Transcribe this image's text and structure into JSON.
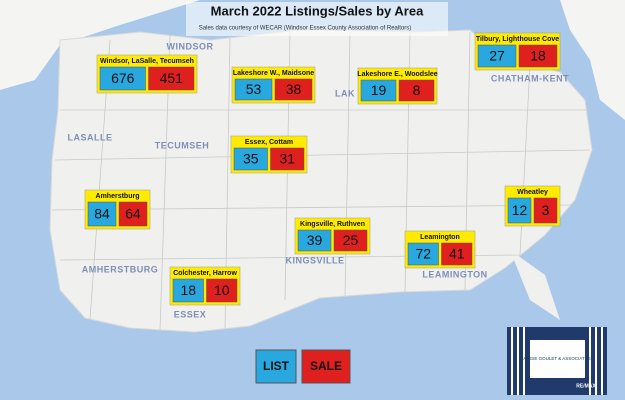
{
  "header": {
    "title": "March 2022 Listings/Sales by Area",
    "subtitle": "Sales data courtesy of WECAR (Windsor Essex County Association of Realtors)"
  },
  "areas": [
    {
      "name": "Windsor, LaSalle, Tecumseh",
      "list": 676,
      "sale": 451
    },
    {
      "name": "Lakeshore W., Maidsone",
      "list": 53,
      "sale": 38
    },
    {
      "name": "Lakeshore E., Woodslee",
      "list": 19,
      "sale": 8
    },
    {
      "name": "Tilbury, Lighthouse Cove",
      "list": 27,
      "sale": 18
    },
    {
      "name": "Essex, Cottam",
      "list": 35,
      "sale": 31
    },
    {
      "name": "Amherstburg",
      "list": 84,
      "sale": 64
    },
    {
      "name": "Wheatley",
      "list": 12,
      "sale": 3
    },
    {
      "name": "Kingsville, Ruthven",
      "list": 39,
      "sale": 25
    },
    {
      "name": "Leamington",
      "list": 72,
      "sale": 41
    },
    {
      "name": "Colchester, Harrow",
      "list": 18,
      "sale": 10
    }
  ],
  "legend": {
    "list": "LIST",
    "sale": "SALE"
  },
  "map_labels": [
    "WINDSOR",
    "LASALLE",
    "TECUMSEH",
    "LAK",
    "CHATHAM-KENT",
    "AMHERSTBURG",
    "KINGSVILLE",
    "LEAMINGTON",
    "ESSEX"
  ],
  "logo": {
    "name": "ANGIE GOULET & ASSOCIATES",
    "brand": "RE/MAX"
  }
}
